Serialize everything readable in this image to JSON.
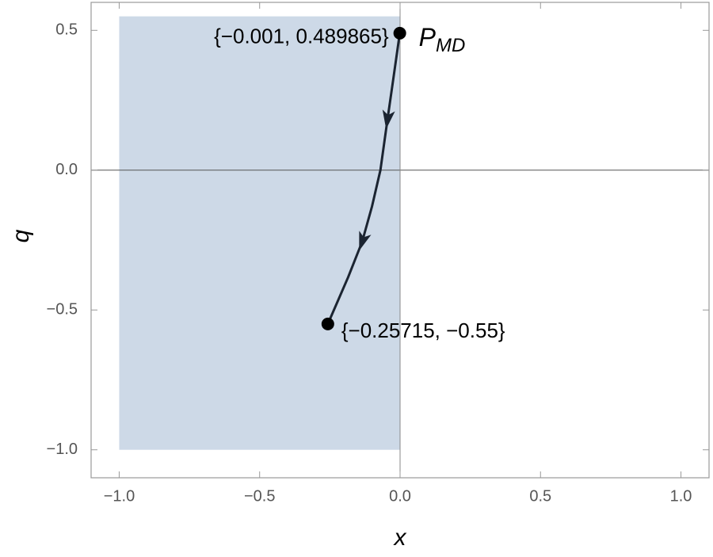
{
  "chart_data": {
    "type": "trajectory",
    "x_label": "x",
    "y_label": "q",
    "xlim": [
      -1.1,
      1.1
    ],
    "ylim": [
      -1.1,
      0.6
    ],
    "xticks": [
      {
        "value": -1.0,
        "label": "−1.0"
      },
      {
        "value": -0.5,
        "label": "−0.5"
      },
      {
        "value": 0,
        "label": "0.0"
      },
      {
        "value": 0.5,
        "label": "0.5"
      },
      {
        "value": 1.0,
        "label": "1.0"
      }
    ],
    "yticks": [
      {
        "value": -1.0,
        "label": "−1.0"
      },
      {
        "value": -0.5,
        "label": "−0.5"
      },
      {
        "value": 0,
        "label": "0.0"
      },
      {
        "value": 0.5,
        "label": "0.5"
      }
    ],
    "region": {
      "x": [
        -1,
        0
      ],
      "y": [
        -1,
        0.55
      ],
      "color": "#cdd9e7"
    },
    "curve": {
      "color": "#1b2431",
      "x": [
        -0.001,
        -0.025,
        -0.045,
        -0.07,
        -0.1,
        -0.135,
        -0.185,
        -0.25715
      ],
      "y": [
        0.489865,
        0.32,
        0.18,
        0,
        -0.13,
        -0.256,
        -0.383,
        -0.55
      ],
      "arrows_at": [
        2,
        5
      ]
    },
    "points": {
      "x": [
        -0.001,
        -0.25715
      ],
      "y": [
        0.489865,
        -0.55
      ],
      "color": "#000000",
      "labels": [
        "{−0.001, 0.489865}",
        "{−0.25715, −0.55}"
      ]
    },
    "marker_label": {
      "main": "P",
      "sub": "MD"
    }
  }
}
